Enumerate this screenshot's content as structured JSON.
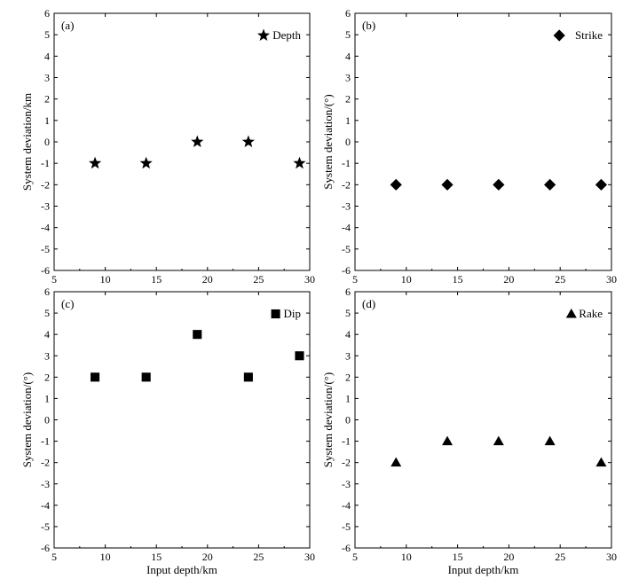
{
  "chart_data": [
    {
      "type": "scatter",
      "panel_label": "(a)",
      "series": [
        {
          "name": "Depth",
          "marker": "star",
          "x": [
            9,
            14,
            19,
            24,
            29
          ],
          "y": [
            -1,
            -1,
            0,
            0,
            -1
          ]
        }
      ],
      "xlabel": "",
      "ylabel": "System deviation/km",
      "xlim": [
        5,
        30
      ],
      "ylim": [
        -6,
        6
      ],
      "xticks": [
        "5",
        "10",
        "15",
        "20",
        "25",
        "30"
      ],
      "yticks": [
        "6",
        "5",
        "4",
        "3",
        "2",
        "1",
        "0",
        "-1",
        "-2",
        "-3",
        "-4",
        "-5",
        "-6"
      ],
      "legend": "top-right",
      "grid": false
    },
    {
      "type": "scatter",
      "panel_label": "(b)",
      "series": [
        {
          "name": "Strike",
          "marker": "diamond",
          "x": [
            9,
            14,
            19,
            24,
            29
          ],
          "y": [
            -2,
            -2,
            -2,
            -2,
            -2
          ]
        }
      ],
      "xlabel": "",
      "ylabel": "System deviation/(°)",
      "xlim": [
        5,
        30
      ],
      "ylim": [
        -6,
        6
      ],
      "xticks": [
        "5",
        "10",
        "15",
        "20",
        "25",
        "30"
      ],
      "yticks": [
        "6",
        "5",
        "4",
        "3",
        "2",
        "1",
        "0",
        "-1",
        "-2",
        "-3",
        "-4",
        "-5",
        "-6"
      ],
      "legend": "top-right",
      "grid": false
    },
    {
      "type": "scatter",
      "panel_label": "(c)",
      "series": [
        {
          "name": "Dip",
          "marker": "square",
          "x": [
            9,
            14,
            19,
            24,
            29
          ],
          "y": [
            2,
            2,
            4,
            2,
            3
          ]
        }
      ],
      "xlabel": "Input depth/km",
      "ylabel": "System deviation/(°)",
      "xlim": [
        5,
        30
      ],
      "ylim": [
        -6,
        6
      ],
      "xticks": [
        "5",
        "10",
        "15",
        "20",
        "25",
        "30"
      ],
      "yticks": [
        "6",
        "5",
        "4",
        "3",
        "2",
        "1",
        "0",
        "-1",
        "-2",
        "-3",
        "-4",
        "-5",
        "-6"
      ],
      "legend": "top-right",
      "grid": false
    },
    {
      "type": "scatter",
      "panel_label": "(d)",
      "series": [
        {
          "name": "Rake",
          "marker": "triangle",
          "x": [
            9,
            14,
            19,
            24,
            29
          ],
          "y": [
            -2,
            -1,
            -1,
            -1,
            -2
          ]
        }
      ],
      "xlabel": "Input depth/km",
      "ylabel": "System deviation/(°)",
      "xlim": [
        5,
        30
      ],
      "ylim": [
        -6,
        6
      ],
      "xticks": [
        "5",
        "10",
        "15",
        "20",
        "25",
        "30"
      ],
      "yticks": [
        "6",
        "5",
        "4",
        "3",
        "2",
        "1",
        "0",
        "-1",
        "-2",
        "-3",
        "-4",
        "-5",
        "-6"
      ],
      "legend": "top-right",
      "grid": false
    }
  ]
}
